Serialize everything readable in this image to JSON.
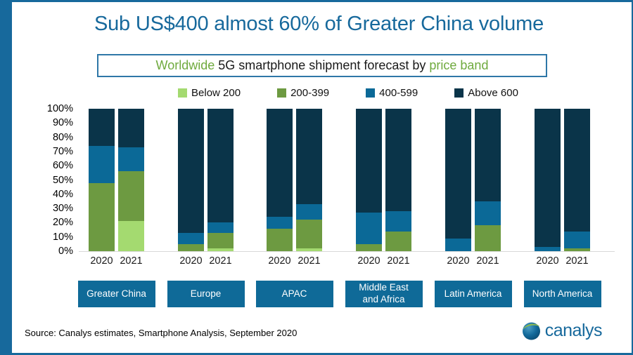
{
  "title": "Sub US$400 almost 60% of Greater China volume",
  "subtitle": {
    "part1": "Worldwide",
    "part2": "5G smartphone shipment forecast by",
    "part3": "price band",
    "green_color": "#6faa3e"
  },
  "accent_color": "#17699c",
  "chart_data": {
    "type": "bar",
    "subtype": "100-percent-stacked-column",
    "title": "Worldwide 5G smartphone shipment forecast by price band",
    "legend_position": "top",
    "grid": false,
    "y_axis": {
      "min": 0,
      "max": 100,
      "ticks": [
        "0%",
        "10%",
        "20%",
        "30%",
        "40%",
        "50%",
        "60%",
        "70%",
        "80%",
        "90%",
        "100%"
      ]
    },
    "bands": [
      {
        "label": "Below 200",
        "color": "#a4da70"
      },
      {
        "label": "200-399",
        "color": "#6d9a41"
      },
      {
        "label": "400-599",
        "color": "#0b6997"
      },
      {
        "label": "Above 600",
        "color": "#0a3449"
      }
    ],
    "years": [
      "2020",
      "2021"
    ],
    "regions": [
      {
        "label_lines": [
          "Greater China"
        ],
        "values": {
          "2020": [
            0,
            48,
            26,
            26
          ],
          "2021": [
            21,
            35,
            17,
            27
          ]
        }
      },
      {
        "label_lines": [
          "Europe"
        ],
        "values": {
          "2020": [
            0,
            5,
            8,
            87
          ],
          "2021": [
            2,
            11,
            7,
            80
          ]
        }
      },
      {
        "label_lines": [
          "APAC"
        ],
        "values": {
          "2020": [
            0,
            16,
            8,
            76
          ],
          "2021": [
            2,
            20,
            11,
            67
          ]
        }
      },
      {
        "label_lines": [
          "Middle East",
          "and Africa"
        ],
        "values": {
          "2020": [
            0,
            5,
            22,
            73
          ],
          "2021": [
            0,
            14,
            14,
            72
          ]
        }
      },
      {
        "label_lines": [
          "Latin America"
        ],
        "values": {
          "2020": [
            0,
            0,
            9,
            91
          ],
          "2021": [
            0,
            18,
            17,
            65
          ]
        }
      },
      {
        "label_lines": [
          "North America"
        ],
        "values": {
          "2020": [
            0,
            0,
            3,
            97
          ],
          "2021": [
            0,
            2,
            12,
            86
          ]
        }
      }
    ]
  },
  "footer": {
    "source": "Source: Canalys estimates, Smartphone Analysis, September 2020",
    "logo_text": "canalys"
  }
}
